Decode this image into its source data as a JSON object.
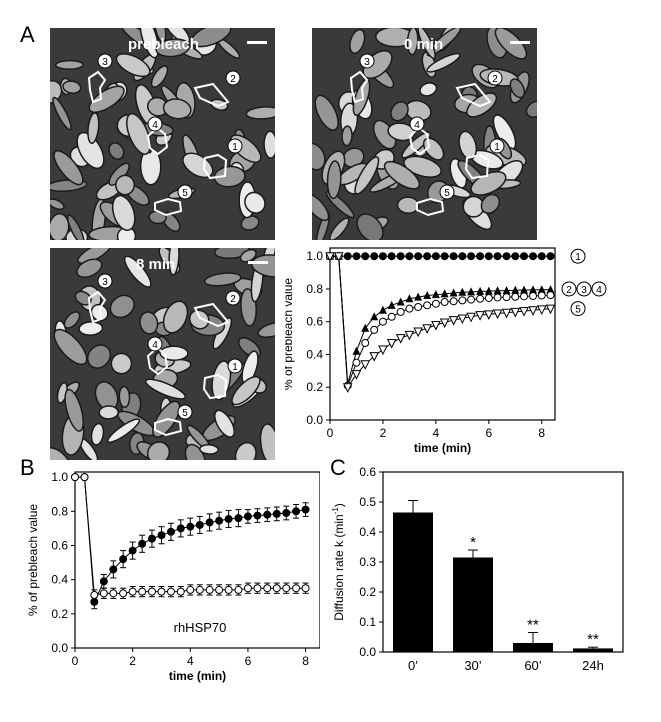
{
  "panels": {
    "a": "A",
    "b": "B",
    "c": "C"
  },
  "micrographs": [
    {
      "label": "prebleach",
      "state": "prebleach"
    },
    {
      "label": "0 min",
      "state": "bleached"
    },
    {
      "label": "8 min",
      "state": "recovering"
    }
  ],
  "roi_labels": [
    "1",
    "2",
    "3",
    "4",
    "5"
  ],
  "colors": {
    "ink": "#000000",
    "micro_bg": "#3a3a3a",
    "roi": "#ffffff"
  },
  "chart_data": [
    {
      "id": "A-curve",
      "type": "line",
      "xlabel": "time (min)",
      "ylabel": "% of prebleach value",
      "xlim": [
        0,
        8.5
      ],
      "ylim": [
        0,
        1.05
      ],
      "xticks": [
        0,
        2,
        4,
        6,
        8
      ],
      "yticks": [
        0.0,
        0.2,
        0.4,
        0.6,
        0.8,
        1.0
      ],
      "x": [
        0.0,
        0.33,
        0.67,
        1.0,
        1.33,
        1.67,
        2.0,
        2.33,
        2.67,
        3.0,
        3.33,
        3.67,
        4.0,
        4.33,
        4.67,
        5.0,
        5.33,
        5.67,
        6.0,
        6.33,
        6.67,
        7.0,
        7.33,
        7.67,
        8.0,
        8.33
      ],
      "series": [
        {
          "name": "1",
          "marker": "filled-circle",
          "values": [
            1.0,
            1.0,
            1.0,
            1.0,
            1.0,
            1.0,
            1.0,
            1.0,
            1.0,
            1.0,
            1.0,
            1.0,
            1.0,
            1.0,
            1.0,
            1.0,
            1.0,
            1.0,
            1.0,
            1.0,
            1.0,
            1.0,
            1.0,
            1.0,
            1.0,
            1.0
          ]
        },
        {
          "name": "234",
          "marker": "filled-triangle",
          "values": [
            1.0,
            1.0,
            0.22,
            0.42,
            0.56,
            0.63,
            0.67,
            0.7,
            0.72,
            0.74,
            0.75,
            0.76,
            0.765,
            0.77,
            0.775,
            0.78,
            0.782,
            0.785,
            0.787,
            0.789,
            0.79,
            0.792,
            0.793,
            0.794,
            0.795,
            0.796
          ]
        },
        {
          "name": "",
          "marker": "open-circle",
          "values": [
            1.0,
            1.0,
            0.21,
            0.35,
            0.47,
            0.55,
            0.6,
            0.63,
            0.66,
            0.68,
            0.69,
            0.7,
            0.71,
            0.72,
            0.725,
            0.73,
            0.735,
            0.74,
            0.745,
            0.748,
            0.75,
            0.752,
            0.755,
            0.757,
            0.76,
            0.762
          ]
        },
        {
          "name": "5",
          "marker": "open-triangle-down",
          "values": [
            1.0,
            1.0,
            0.2,
            0.28,
            0.34,
            0.39,
            0.43,
            0.47,
            0.5,
            0.52,
            0.54,
            0.56,
            0.58,
            0.595,
            0.61,
            0.62,
            0.63,
            0.64,
            0.645,
            0.65,
            0.655,
            0.66,
            0.665,
            0.67,
            0.675,
            0.68
          ]
        }
      ]
    },
    {
      "id": "B",
      "type": "line",
      "annotation": "rhHSP70",
      "xlabel": "time (min)",
      "ylabel": "% of prebleach value",
      "xlim": [
        0,
        8.5
      ],
      "ylim": [
        0,
        1.03
      ],
      "xticks": [
        0,
        2,
        4,
        6,
        8
      ],
      "yticks": [
        0.0,
        0.2,
        0.4,
        0.6,
        0.8,
        1.0
      ],
      "x": [
        0.0,
        0.33,
        0.67,
        1.0,
        1.33,
        1.67,
        2.0,
        2.33,
        2.67,
        3.0,
        3.33,
        3.67,
        4.0,
        4.33,
        4.67,
        5.0,
        5.33,
        5.67,
        6.0,
        6.33,
        6.67,
        7.0,
        7.33,
        7.67,
        8.0
      ],
      "series": [
        {
          "name": "",
          "marker": "filled-circle",
          "values": [
            1.0,
            1.0,
            0.27,
            0.39,
            0.46,
            0.52,
            0.57,
            0.61,
            0.64,
            0.66,
            0.68,
            0.7,
            0.71,
            0.72,
            0.735,
            0.745,
            0.755,
            0.76,
            0.77,
            0.775,
            0.78,
            0.785,
            0.79,
            0.8,
            0.81
          ],
          "errors": [
            0.0,
            0.0,
            0.04,
            0.04,
            0.05,
            0.05,
            0.05,
            0.05,
            0.05,
            0.05,
            0.05,
            0.05,
            0.05,
            0.05,
            0.05,
            0.05,
            0.05,
            0.05,
            0.04,
            0.04,
            0.04,
            0.04,
            0.04,
            0.04,
            0.04
          ]
        },
        {
          "name": "",
          "marker": "open-circle",
          "values": [
            1.0,
            1.0,
            0.31,
            0.32,
            0.32,
            0.32,
            0.33,
            0.33,
            0.33,
            0.33,
            0.33,
            0.33,
            0.34,
            0.34,
            0.34,
            0.34,
            0.34,
            0.34,
            0.35,
            0.35,
            0.35,
            0.35,
            0.35,
            0.35,
            0.35
          ],
          "errors": [
            0.0,
            0.0,
            0.03,
            0.03,
            0.03,
            0.03,
            0.03,
            0.03,
            0.03,
            0.03,
            0.03,
            0.03,
            0.03,
            0.03,
            0.03,
            0.03,
            0.03,
            0.03,
            0.03,
            0.03,
            0.03,
            0.03,
            0.03,
            0.03,
            0.03
          ]
        }
      ]
    },
    {
      "id": "C",
      "type": "bar",
      "ylabel": "Diffusion rate k (min",
      "ylabel_sup": "-1",
      "ylabel_close": ")",
      "ylim": [
        0,
        0.6
      ],
      "yticks": [
        0.0,
        0.1,
        0.2,
        0.3,
        0.4,
        0.5,
        0.6
      ],
      "categories": [
        "0’",
        "30’",
        "60’",
        "24h"
      ],
      "values": [
        0.465,
        0.315,
        0.03,
        0.012
      ],
      "errors": [
        0.04,
        0.025,
        0.035,
        0.004
      ],
      "significance": [
        "",
        "*",
        "**",
        "**"
      ]
    }
  ]
}
